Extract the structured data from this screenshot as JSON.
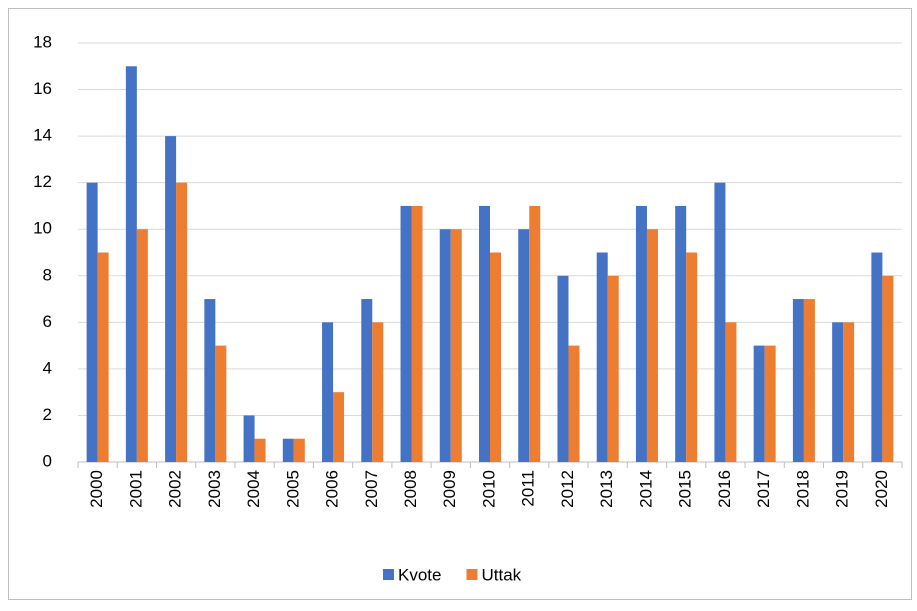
{
  "chart_data": {
    "type": "bar",
    "categories": [
      "2000",
      "2001",
      "2002",
      "2003",
      "2004",
      "2005",
      "2006",
      "2007",
      "2008",
      "2009",
      "2010",
      "2011",
      "2012",
      "2013",
      "2014",
      "2015",
      "2016",
      "2017",
      "2018",
      "2019",
      "2020"
    ],
    "series": [
      {
        "name": "Kvote",
        "color": "#4472c4",
        "values": [
          12,
          17,
          14,
          7,
          2,
          1,
          6,
          7,
          11,
          10,
          11,
          10,
          8,
          9,
          11,
          11,
          12,
          5,
          7,
          6,
          9
        ]
      },
      {
        "name": "Uttak",
        "color": "#ed7d31",
        "values": [
          9,
          10,
          12,
          5,
          1,
          1,
          3,
          6,
          11,
          10,
          9,
          11,
          5,
          8,
          10,
          9,
          6,
          5,
          7,
          6,
          8
        ]
      }
    ],
    "ylim": [
      0,
      18
    ],
    "yticks": [
      0,
      2,
      4,
      6,
      8,
      10,
      12,
      14,
      16,
      18
    ],
    "grid": true,
    "legend": "bottom"
  }
}
